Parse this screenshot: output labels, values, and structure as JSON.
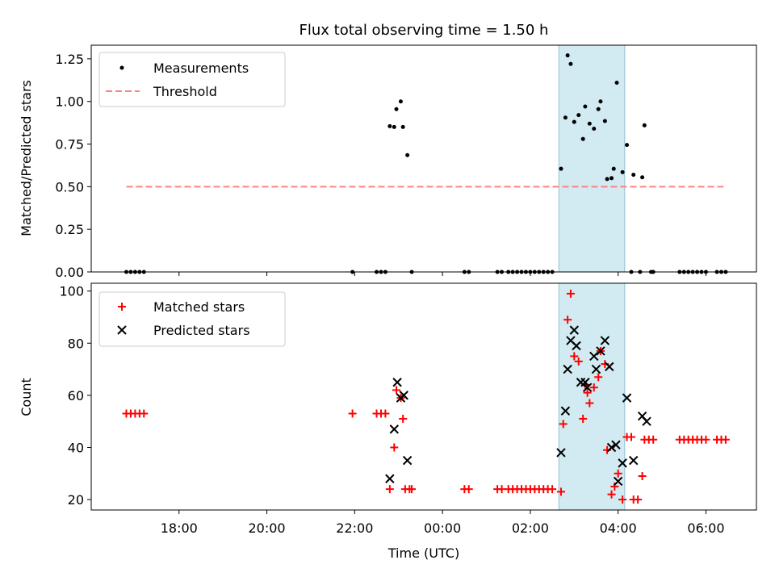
{
  "chart_data": [
    {
      "type": "scatter",
      "title": "Flux total observing time = 1.50 h",
      "ylabel": "Matched/Predicted stars",
      "xlabel": "",
      "x_unit": "hours since 16:00 UTC (axis labeled with clock times)",
      "xlim": [
        16.0,
        31.15
      ],
      "ylim": [
        0,
        1.33
      ],
      "yticks": [
        "0.00",
        "0.25",
        "0.50",
        "0.75",
        "1.00",
        "1.25"
      ],
      "ytick_values": [
        0,
        0.25,
        0.5,
        0.75,
        1.0,
        1.25
      ],
      "grid": false,
      "legend_position": "top-left",
      "highlight_span": [
        26.65,
        28.15
      ],
      "threshold": {
        "name": "Threshold",
        "value": 0.5,
        "x_range": [
          16.8,
          30.4
        ],
        "color": "#ff8080"
      },
      "series": [
        {
          "name": "Measurements",
          "color": "#000000",
          "points": [
            [
              16.8,
              0
            ],
            [
              16.9,
              0
            ],
            [
              17.0,
              0
            ],
            [
              17.1,
              0
            ],
            [
              17.2,
              0
            ],
            [
              21.95,
              0
            ],
            [
              22.5,
              0
            ],
            [
              22.6,
              0
            ],
            [
              22.7,
              0
            ],
            [
              22.8,
              0.855
            ],
            [
              22.9,
              0.85
            ],
            [
              22.95,
              0.955
            ],
            [
              23.05,
              1.0
            ],
            [
              23.1,
              0.85
            ],
            [
              23.2,
              0.685
            ],
            [
              23.3,
              0
            ],
            [
              24.5,
              0
            ],
            [
              24.6,
              0
            ],
            [
              25.25,
              0
            ],
            [
              25.35,
              0
            ],
            [
              25.5,
              0
            ],
            [
              25.6,
              0
            ],
            [
              25.7,
              0
            ],
            [
              25.8,
              0
            ],
            [
              25.9,
              0
            ],
            [
              26.0,
              0
            ],
            [
              26.1,
              0
            ],
            [
              26.2,
              0
            ],
            [
              26.3,
              0
            ],
            [
              26.4,
              0
            ],
            [
              26.5,
              0
            ],
            [
              26.7,
              0.605
            ],
            [
              26.8,
              0.905
            ],
            [
              26.85,
              1.27
            ],
            [
              26.92,
              1.22
            ],
            [
              27.0,
              0.88
            ],
            [
              27.1,
              0.92
            ],
            [
              27.2,
              0.78
            ],
            [
              27.25,
              0.97
            ],
            [
              27.35,
              0.87
            ],
            [
              27.45,
              0.84
            ],
            [
              27.55,
              0.955
            ],
            [
              27.6,
              1.0
            ],
            [
              27.7,
              0.885
            ],
            [
              27.75,
              0.545
            ],
            [
              27.85,
              0.55
            ],
            [
              27.9,
              0.605
            ],
            [
              27.97,
              1.11
            ],
            [
              28.1,
              0.585
            ],
            [
              28.2,
              0.745
            ],
            [
              28.3,
              0
            ],
            [
              28.35,
              0.57
            ],
            [
              28.5,
              0
            ],
            [
              28.55,
              0.555
            ],
            [
              28.6,
              0.86
            ],
            [
              28.75,
              0
            ],
            [
              28.8,
              0
            ],
            [
              29.4,
              0
            ],
            [
              29.5,
              0
            ],
            [
              29.6,
              0
            ],
            [
              29.7,
              0
            ],
            [
              29.8,
              0
            ],
            [
              29.9,
              0
            ],
            [
              30.0,
              0
            ],
            [
              30.25,
              0
            ],
            [
              30.35,
              0
            ],
            [
              30.45,
              0
            ]
          ]
        }
      ]
    },
    {
      "type": "scatter",
      "title": "",
      "ylabel": "Count",
      "xlabel": "Time (UTC)",
      "xlim": [
        16.0,
        31.15
      ],
      "ylim": [
        16,
        103
      ],
      "yticks": [
        "20",
        "40",
        "60",
        "80",
        "100"
      ],
      "ytick_values": [
        20,
        40,
        60,
        80,
        100
      ],
      "xticks": [
        "18:00",
        "20:00",
        "22:00",
        "00:00",
        "02:00",
        "04:00",
        "06:00"
      ],
      "xtick_values": [
        18,
        20,
        22,
        24,
        26,
        28,
        30
      ],
      "grid": false,
      "legend_position": "top-left",
      "highlight_span": [
        26.65,
        28.15
      ],
      "series": [
        {
          "name": "Matched stars",
          "marker": "plus",
          "color": "#ff0000",
          "points": [
            [
              16.8,
              53
            ],
            [
              16.9,
              53
            ],
            [
              17.0,
              53
            ],
            [
              17.1,
              53
            ],
            [
              17.2,
              53
            ],
            [
              21.95,
              53
            ],
            [
              22.5,
              53
            ],
            [
              22.6,
              53
            ],
            [
              22.7,
              53
            ],
            [
              22.8,
              24
            ],
            [
              22.9,
              40
            ],
            [
              22.95,
              62
            ],
            [
              23.05,
              59
            ],
            [
              23.1,
              51
            ],
            [
              23.15,
              24
            ],
            [
              23.25,
              24
            ],
            [
              23.3,
              24
            ],
            [
              24.5,
              24
            ],
            [
              24.6,
              24
            ],
            [
              25.25,
              24
            ],
            [
              25.35,
              24
            ],
            [
              25.5,
              24
            ],
            [
              25.6,
              24
            ],
            [
              25.7,
              24
            ],
            [
              25.8,
              24
            ],
            [
              25.9,
              24
            ],
            [
              26.0,
              24
            ],
            [
              26.1,
              24
            ],
            [
              26.2,
              24
            ],
            [
              26.3,
              24
            ],
            [
              26.4,
              24
            ],
            [
              26.5,
              24
            ],
            [
              26.7,
              23
            ],
            [
              26.75,
              49
            ],
            [
              26.85,
              89
            ],
            [
              26.92,
              99
            ],
            [
              27.0,
              75
            ],
            [
              27.1,
              73
            ],
            [
              27.2,
              51
            ],
            [
              27.25,
              64
            ],
            [
              27.3,
              61
            ],
            [
              27.35,
              57
            ],
            [
              27.45,
              63
            ],
            [
              27.55,
              67
            ],
            [
              27.6,
              77
            ],
            [
              27.7,
              72
            ],
            [
              27.75,
              39
            ],
            [
              27.85,
              22
            ],
            [
              27.92,
              25
            ],
            [
              28.0,
              30
            ],
            [
              28.1,
              20
            ],
            [
              28.2,
              44
            ],
            [
              28.3,
              44
            ],
            [
              28.35,
              20
            ],
            [
              28.45,
              20
            ],
            [
              28.55,
              29
            ],
            [
              28.6,
              43
            ],
            [
              28.7,
              43
            ],
            [
              28.8,
              43
            ],
            [
              29.4,
              43
            ],
            [
              29.5,
              43
            ],
            [
              29.6,
              43
            ],
            [
              29.7,
              43
            ],
            [
              29.8,
              43
            ],
            [
              29.9,
              43
            ],
            [
              30.0,
              43
            ],
            [
              30.25,
              43
            ],
            [
              30.35,
              43
            ],
            [
              30.45,
              43
            ]
          ]
        },
        {
          "name": "Predicted stars",
          "marker": "x",
          "color": "#000000",
          "points": [
            [
              22.8,
              28
            ],
            [
              22.9,
              47
            ],
            [
              22.97,
              65
            ],
            [
              23.05,
              59
            ],
            [
              23.12,
              60
            ],
            [
              23.2,
              35
            ],
            [
              26.7,
              38
            ],
            [
              26.8,
              54
            ],
            [
              26.85,
              70
            ],
            [
              26.92,
              81
            ],
            [
              27.0,
              85
            ],
            [
              27.05,
              79
            ],
            [
              27.15,
              65
            ],
            [
              27.25,
              65
            ],
            [
              27.3,
              63
            ],
            [
              27.45,
              75
            ],
            [
              27.5,
              70
            ],
            [
              27.6,
              77
            ],
            [
              27.7,
              81
            ],
            [
              27.8,
              71
            ],
            [
              27.85,
              40
            ],
            [
              27.95,
              41
            ],
            [
              28.0,
              27
            ],
            [
              28.1,
              34
            ],
            [
              28.2,
              59
            ],
            [
              28.35,
              35
            ],
            [
              28.55,
              52
            ],
            [
              28.65,
              50
            ]
          ]
        }
      ]
    }
  ]
}
